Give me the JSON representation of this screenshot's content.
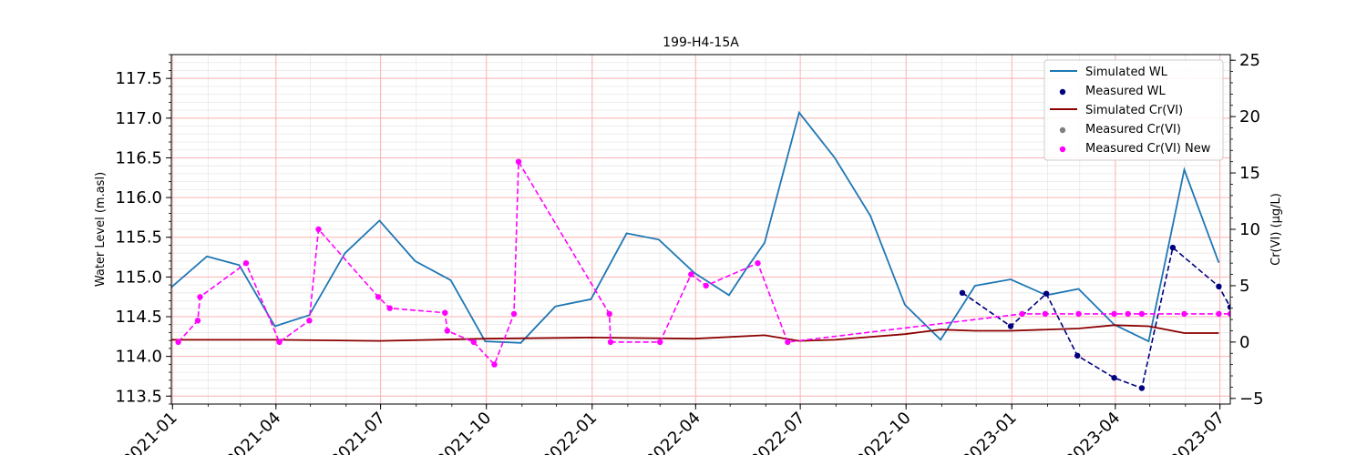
{
  "chart_data": {
    "type": "line",
    "title": "199-H4-15A",
    "xlabel": "",
    "ylabel_left": "Water Level (m.asl)",
    "ylabel_right": "Cr(VI) (µg/L)",
    "x_range": [
      "2020-12-31",
      "2023-07-10"
    ],
    "ylim_left": [
      113.4,
      117.8
    ],
    "ylim_right": [
      -5.5,
      25.5
    ],
    "x_ticks": [
      "2021-01-01",
      "2021-04-01",
      "2021-07-01",
      "2021-10-01",
      "2022-01-01",
      "2022-04-01",
      "2022-07-01",
      "2022-10-01",
      "2023-01-01",
      "2023-04-01",
      "2023-07-01"
    ],
    "x_tick_labels": [
      "2021-01",
      "2021-04",
      "2021-07",
      "2021-10",
      "2022-01",
      "2022-04",
      "2022-07",
      "2022-10",
      "2023-01",
      "2023-04",
      "2023-07"
    ],
    "y_ticks_left": [
      "113.5",
      "114.0",
      "114.5",
      "115.0",
      "115.5",
      "116.0",
      "116.5",
      "117.0",
      "117.5"
    ],
    "y_ticks_right": [
      "−5",
      "0",
      "5",
      "10",
      "15",
      "20",
      "25"
    ],
    "grid": true,
    "legend_position": "top-right",
    "series": [
      {
        "name": "Simulated WL",
        "axis": "left",
        "style": "line",
        "color": "#1f77b4",
        "x": [
          "2020-12-31",
          "2021-01-31",
          "2021-02-28",
          "2021-03-31",
          "2021-04-30",
          "2021-05-31",
          "2021-06-30",
          "2021-07-31",
          "2021-08-31",
          "2021-09-30",
          "2021-10-31",
          "2021-11-30",
          "2021-12-31",
          "2022-01-31",
          "2022-02-28",
          "2022-03-31",
          "2022-04-30",
          "2022-05-15",
          "2022-05-31",
          "2022-06-30",
          "2022-07-31",
          "2022-08-31",
          "2022-09-30",
          "2022-10-31",
          "2022-11-30",
          "2022-12-31",
          "2023-01-31",
          "2023-02-28",
          "2023-03-31",
          "2023-04-30",
          "2023-05-31",
          "2023-06-30"
        ],
        "y": [
          114.87,
          115.26,
          115.15,
          114.38,
          114.52,
          115.3,
          115.71,
          115.2,
          114.96,
          114.19,
          114.17,
          114.63,
          114.72,
          115.55,
          115.47,
          115.05,
          114.77,
          115.1,
          115.43,
          117.07,
          116.5,
          115.77,
          114.65,
          114.21,
          114.89,
          114.97,
          114.77,
          114.85,
          114.4,
          114.19,
          116.35,
          115.18
        ]
      },
      {
        "name": "Measured WL",
        "axis": "left",
        "style": "points-dashed",
        "color": "#00007f",
        "x": [
          "2022-11-19",
          "2022-12-31",
          "2023-01-31",
          "2023-02-27",
          "2023-03-31",
          "2023-04-24",
          "2023-05-21",
          "2023-06-30",
          "2023-07-10"
        ],
        "y": [
          114.8,
          114.38,
          114.79,
          114.01,
          113.73,
          113.6,
          115.37,
          114.88,
          114.62
        ]
      },
      {
        "name": "Simulated Cr(VI)",
        "axis": "right",
        "style": "line",
        "color": "#8b0000",
        "x": [
          "2020-12-31",
          "2021-03-31",
          "2021-06-30",
          "2021-09-30",
          "2021-12-31",
          "2022-03-31",
          "2022-05-31",
          "2022-06-30",
          "2022-07-31",
          "2022-09-30",
          "2022-10-31",
          "2022-11-30",
          "2022-12-31",
          "2023-02-28",
          "2023-03-31",
          "2023-04-30",
          "2023-05-31",
          "2023-06-30"
        ],
        "y": [
          0.2,
          0.2,
          0.1,
          0.3,
          0.4,
          0.3,
          0.6,
          0.1,
          0.2,
          0.7,
          1.1,
          1.0,
          1.0,
          1.2,
          1.5,
          1.4,
          0.8,
          0.8
        ]
      },
      {
        "name": "Measured Cr(VI)",
        "axis": "right",
        "style": "points",
        "color": "#808080",
        "x": [],
        "y": []
      },
      {
        "name": "Measured Cr(VI) New",
        "axis": "right",
        "style": "points-dashed",
        "color": "#ff00ff",
        "x": [
          "2021-01-06",
          "2021-01-23",
          "2021-01-25",
          "2021-03-06",
          "2021-04-04",
          "2021-04-30",
          "2021-05-08",
          "2021-06-29",
          "2021-07-09",
          "2021-08-26",
          "2021-08-28",
          "2021-09-20",
          "2021-10-08",
          "2021-10-25",
          "2021-10-29",
          "2022-01-16",
          "2022-01-17",
          "2022-03-01",
          "2022-03-28",
          "2022-04-10",
          "2022-05-25",
          "2022-06-20",
          "2023-01-10",
          "2023-01-30",
          "2023-02-28",
          "2023-03-31",
          "2023-04-12",
          "2023-04-24",
          "2023-05-31",
          "2023-06-30",
          "2023-07-10"
        ],
        "y": [
          0.0,
          1.9,
          4.0,
          7.0,
          0.0,
          1.9,
          10.0,
          4.0,
          3.0,
          2.6,
          1.0,
          0.0,
          -2.0,
          2.5,
          16.0,
          2.5,
          0.0,
          0.0,
          6.0,
          5.0,
          7.0,
          0.0,
          2.5,
          2.5,
          2.5,
          2.5,
          2.5,
          2.5,
          2.5,
          2.5,
          2.5
        ]
      }
    ],
    "colors": {
      "grid_major": "#ffb3b3",
      "grid_minor": "#e8e8e8"
    }
  }
}
